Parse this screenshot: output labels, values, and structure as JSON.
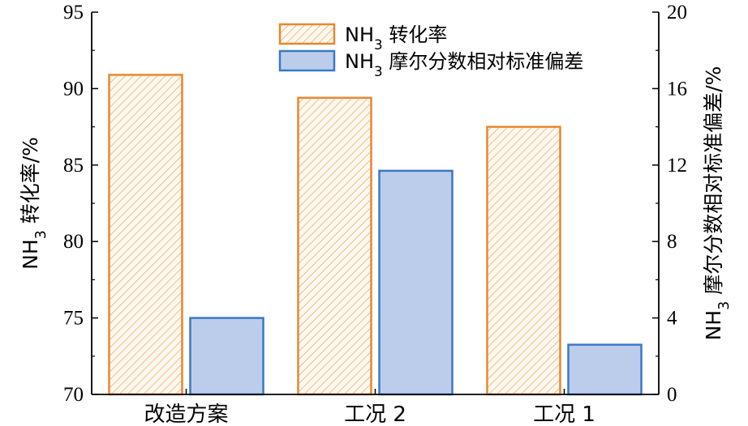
{
  "chart_data": {
    "type": "bar",
    "categories": [
      "改造方案",
      "工况 2",
      "工况 1"
    ],
    "series": [
      {
        "name": "NH3 转化率",
        "name_main": "NH",
        "name_sub": "3",
        "name_rest": " 转化率",
        "axis": "left",
        "values": [
          90.9,
          89.4,
          87.5
        ],
        "stroke": "#E8882E",
        "fill": "#FFF8EE",
        "hatch": "#E8A46A"
      },
      {
        "name": "NH3 摩尔分数相对标准偏差",
        "name_main": "NH",
        "name_sub": "3",
        "name_rest": " 摩尔分数相对标准偏差",
        "axis": "right",
        "values": [
          4.0,
          11.7,
          2.6
        ],
        "stroke": "#3B78C4",
        "fill": "#BCCDEC"
      }
    ],
    "y_left": {
      "label_main": "NH",
      "label_sub": "3",
      "label_rest": " 转化率/%",
      "lim": [
        70,
        95
      ],
      "ticks": [
        70,
        75,
        80,
        85,
        90,
        95
      ]
    },
    "y_right": {
      "label_main": "NH",
      "label_sub": "3",
      "label_rest": " 摩尔分数相对标准偏差/%",
      "lim": [
        0,
        20
      ],
      "ticks": [
        0,
        4,
        8,
        12,
        16,
        20
      ]
    },
    "legend_position": "top-center",
    "grid": false
  }
}
